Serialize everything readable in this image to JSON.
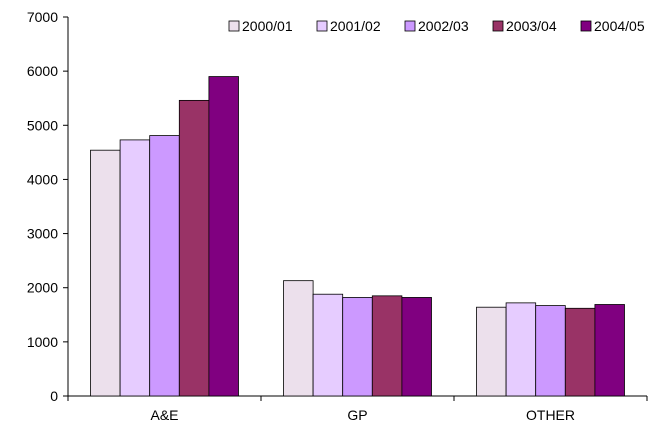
{
  "chart_data": {
    "type": "bar",
    "title": "",
    "xlabel": "",
    "ylabel": "",
    "categories": [
      "A&E",
      "GP",
      "OTHER"
    ],
    "ylim": [
      0,
      7000
    ],
    "yticks": [
      0,
      1000,
      2000,
      3000,
      4000,
      5000,
      6000,
      7000
    ],
    "grid": false,
    "legend_position": "top-right",
    "series": [
      {
        "name": "2000/01",
        "color": "#ece0ec",
        "values": [
          4540,
          2130,
          1640
        ]
      },
      {
        "name": "2001/02",
        "color": "#e6ccff",
        "values": [
          4730,
          1880,
          1720
        ]
      },
      {
        "name": "2002/03",
        "color": "#cc99ff",
        "values": [
          4810,
          1820,
          1670
        ]
      },
      {
        "name": "2003/04",
        "color": "#993366",
        "values": [
          5460,
          1850,
          1620
        ]
      },
      {
        "name": "2004/05",
        "color": "#800080",
        "values": [
          5900,
          1820,
          1690
        ]
      }
    ]
  }
}
